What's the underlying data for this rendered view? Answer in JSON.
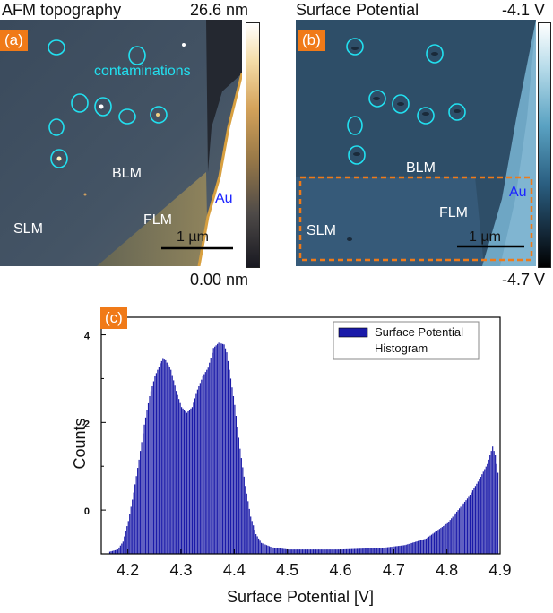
{
  "panel_a": {
    "badge": "(a)",
    "title": "AFM topography",
    "cbar_max": "26.6 nm",
    "cbar_min": "0.00 nm",
    "note": "contaminations",
    "regions": {
      "blm": "BLM",
      "flm": "FLM",
      "slm": "SLM",
      "au": "Au"
    },
    "scalebar": "1 µm"
  },
  "panel_b": {
    "badge": "(b)",
    "title": "Surface Potential",
    "cbar_max": "-4.1 V",
    "cbar_min": "-4.7 V",
    "regions": {
      "blm": "BLM",
      "flm": "FLM",
      "slm": "SLM",
      "au": "Au"
    },
    "scalebar": "1 µm"
  },
  "colors": {
    "badge": "#f07a18",
    "circle": "#22e0f0",
    "au_label": "#1c24ff",
    "bar": "#1a1aa8",
    "dash": "#f07a18"
  },
  "chart_data": {
    "type": "bar",
    "badge": "(c)",
    "title": "",
    "xlabel": "Surface Potential [V]",
    "ylabel": "Counts",
    "xlim": [
      4.15,
      4.9
    ],
    "ylim": [
      -1.0,
      4.4
    ],
    "xticks": [
      "4.2",
      "4.3",
      "4.4",
      "4.5",
      "4.6",
      "4.7",
      "4.8",
      "4.9"
    ],
    "yticks": [
      "0",
      "2",
      "4"
    ],
    "legend": {
      "line1": "Surface Potential",
      "line2": "Histogram",
      "position": "top-right"
    },
    "anchors": [
      [
        4.165,
        -0.95
      ],
      [
        4.18,
        -0.9
      ],
      [
        4.19,
        -0.72
      ],
      [
        4.2,
        -0.25
      ],
      [
        4.21,
        0.4
      ],
      [
        4.22,
        1.15
      ],
      [
        4.23,
        1.95
      ],
      [
        4.24,
        2.6
      ],
      [
        4.25,
        3.05
      ],
      [
        4.26,
        3.35
      ],
      [
        4.265,
        3.45
      ],
      [
        4.27,
        3.42
      ],
      [
        4.28,
        3.2
      ],
      [
        4.29,
        2.72
      ],
      [
        4.3,
        2.35
      ],
      [
        4.31,
        2.22
      ],
      [
        4.32,
        2.35
      ],
      [
        4.33,
        2.75
      ],
      [
        4.34,
        3.05
      ],
      [
        4.35,
        3.25
      ],
      [
        4.36,
        3.7
      ],
      [
        4.37,
        3.82
      ],
      [
        4.38,
        3.78
      ],
      [
        4.385,
        3.6
      ],
      [
        4.39,
        3.2
      ],
      [
        4.4,
        2.4
      ],
      [
        4.41,
        1.4
      ],
      [
        4.42,
        0.55
      ],
      [
        4.43,
        -0.15
      ],
      [
        4.44,
        -0.55
      ],
      [
        4.45,
        -0.75
      ],
      [
        4.47,
        -0.85
      ],
      [
        4.5,
        -0.9
      ],
      [
        4.6,
        -0.9
      ],
      [
        4.68,
        -0.86
      ],
      [
        4.72,
        -0.8
      ],
      [
        4.76,
        -0.65
      ],
      [
        4.8,
        -0.3
      ],
      [
        4.82,
        0.0
      ],
      [
        4.84,
        0.3
      ],
      [
        4.86,
        0.7
      ],
      [
        4.875,
        1.05
      ],
      [
        4.885,
        1.45
      ],
      [
        4.89,
        1.25
      ],
      [
        4.895,
        0.85
      ]
    ]
  }
}
